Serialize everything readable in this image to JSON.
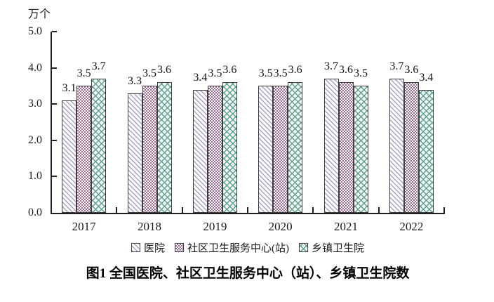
{
  "figure": {
    "unit_label": "万个",
    "title": "图1 全国医院、社区卫生服务中心（站）、乡镇卫生院数"
  },
  "chart_data": {
    "type": "bar",
    "title": "图1 全国医院、社区卫生服务中心（站）、乡镇卫生院数",
    "ylabel": "万个",
    "categories": [
      "2017",
      "2018",
      "2019",
      "2020",
      "2021",
      "2022"
    ],
    "series": [
      {
        "name": "医院",
        "pattern": "diagonal-stripe",
        "color": "#a8a2c6",
        "values": [
          3.1,
          3.3,
          3.4,
          3.5,
          3.7,
          3.7
        ]
      },
      {
        "name": "社区卫生服务中心(站)",
        "pattern": "checkerboard",
        "color": "#9e6992",
        "values": [
          3.5,
          3.5,
          3.5,
          3.5,
          3.6,
          3.6
        ]
      },
      {
        "name": "乡镇卫生院",
        "pattern": "diamond-weave",
        "color": "#5da08e",
        "values": [
          3.7,
          3.6,
          3.6,
          3.6,
          3.5,
          3.4
        ]
      }
    ],
    "ylim": [
      0.0,
      5.0
    ],
    "ytick_labels": [
      "5.0",
      "4.0",
      "3.0",
      "2.0",
      "1.0",
      "0.0"
    ],
    "grid": false,
    "legend_position": "bottom",
    "value_labels_shown": true
  },
  "colors": {
    "axis": "#1f1f1f",
    "text": "#111111",
    "bar_border": "#3d3d3d",
    "background": "#ffffff"
  }
}
